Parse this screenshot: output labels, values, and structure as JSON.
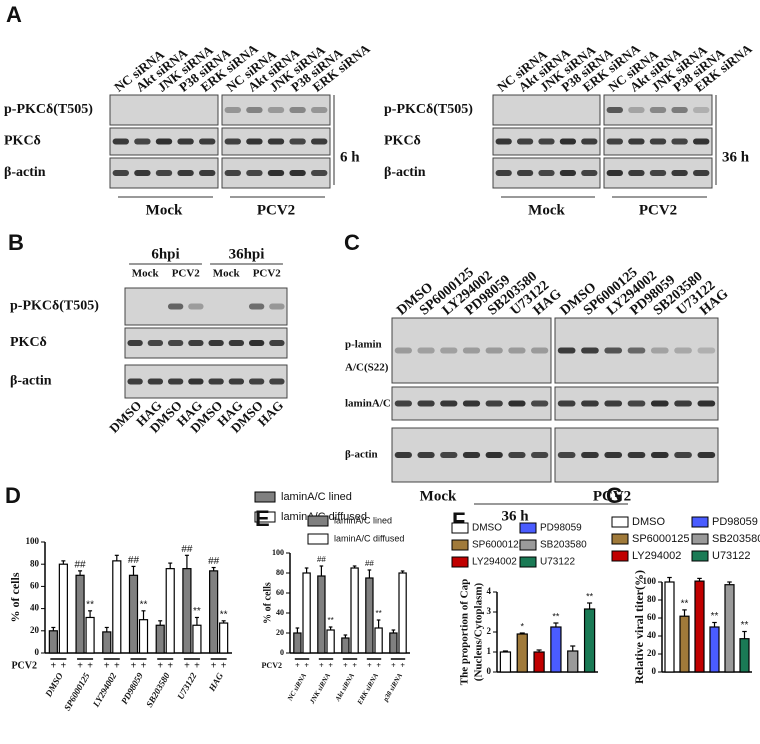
{
  "figure": {
    "A": {
      "label": "A",
      "left": {
        "columns": [
          "NC siRNA",
          "Akt siRNA",
          "JNK siRNA",
          "P38 siRNA",
          "ERK siRNA",
          "NC siRNA",
          "Akt siRNA",
          "JNK siRNA",
          "P38 siRNA",
          "ERK siRNA"
        ],
        "rows": [
          "p-PKCδ(T505)",
          "PKCδ",
          "β-actin"
        ],
        "time": "6 h",
        "groups": [
          "Mock",
          "PCV2"
        ]
      },
      "right": {
        "columns": [
          "NC siRNA",
          "Akt siRNA",
          "JNK siRNA",
          "P38 siRNA",
          "ERK siRNA",
          "NC siRNA",
          "Akt siRNA",
          "JNK siRNA",
          "P38 siRNA",
          "ERK siRNA"
        ],
        "rows": [
          "p-PKCδ(T505)",
          "PKCδ",
          "β-actin"
        ],
        "time": "36 h",
        "groups": [
          "Mock",
          "PCV2"
        ]
      }
    },
    "B": {
      "label": "B",
      "times": [
        "6hpi",
        "36hpi"
      ],
      "groups": [
        "Mock",
        "PCV2",
        "Mock",
        "PCV2"
      ],
      "rows": [
        "p-PKCδ(T505)",
        "PKCδ",
        "β-actin"
      ],
      "lanes": [
        "DMSO",
        "HAG",
        "DMSO",
        "HAG",
        "DMSO",
        "HAG",
        "DMSO",
        "HAG"
      ]
    },
    "C": {
      "label": "C",
      "columns": [
        "DMSO",
        "SP6000125",
        "LY294002",
        "PD98059",
        "SB203580",
        "U73122",
        "HAG",
        "DMSO",
        "SP6000125",
        "LY294002",
        "PD98059",
        "SB203580",
        "U73122",
        "HAG"
      ],
      "row_labels": [
        "p-lamin",
        "A/C(S22)",
        "laminA/C",
        "β-actin"
      ],
      "groups": [
        "Mock",
        "PCV2"
      ],
      "time": "36 h"
    }
  },
  "chart_data": [
    {
      "type": "bar",
      "panel": "D",
      "y_label": "% of cells",
      "categories": [
        "DMSO",
        "SP6000125",
        "LY294002",
        "PD98059",
        "SB203580",
        "U73122",
        "HAG"
      ],
      "series": [
        {
          "name": "laminA/C lined",
          "color": "#808080",
          "values": [
            20,
            70,
            19,
            70,
            25,
            76,
            74
          ],
          "errors": [
            3,
            4,
            4,
            8,
            4,
            12,
            3
          ],
          "annotations": [
            null,
            "##",
            null,
            "##",
            null,
            "##",
            "##"
          ]
        },
        {
          "name": "laminA/C diffused",
          "color": "#ffffff",
          "values": [
            80,
            32,
            83,
            30,
            76,
            25,
            27
          ],
          "errors": [
            3,
            6,
            5,
            8,
            5,
            7,
            2
          ],
          "annotations": [
            null,
            "**",
            null,
            "**",
            null,
            "**",
            "**"
          ]
        }
      ],
      "ylim": [
        0,
        100
      ],
      "yticks": [
        0,
        20,
        40,
        60,
        80,
        100
      ],
      "treatment": "PCV2",
      "treatment_sign": "+"
    },
    {
      "type": "bar",
      "panel": "E",
      "y_label": "% of cells",
      "categories": [
        "NC siRNA",
        "JNK siRNA",
        "Akt siRNA",
        "ERK siRNA",
        "p38 siRNA"
      ],
      "series": [
        {
          "name": "laminA/C lined",
          "color": "#808080",
          "values": [
            20,
            77,
            15,
            75,
            20
          ],
          "errors": [
            5,
            10,
            3,
            8,
            3
          ],
          "annotations": [
            null,
            "##",
            null,
            "##",
            null
          ]
        },
        {
          "name": "laminA/C diffused",
          "color": "#ffffff",
          "values": [
            80,
            23,
            85,
            25,
            80
          ],
          "errors": [
            5,
            3,
            2,
            8,
            2
          ],
          "annotations": [
            null,
            "**",
            null,
            "**",
            null
          ]
        }
      ],
      "ylim": [
        0,
        100
      ],
      "yticks": [
        0,
        20,
        40,
        60,
        80,
        100
      ],
      "treatment": "PCV2",
      "treatment_sign": "+"
    },
    {
      "type": "bar",
      "panel": "F",
      "y_label": [
        "The proportion of Cap",
        "(Nucleus/Cytoplasm)"
      ],
      "categories": [
        "DMSO",
        "SP6000125",
        "LY294002",
        "PD98059",
        "SB203580",
        "U73122"
      ],
      "colors": [
        "#ffffff",
        "#a07a3a",
        "#c00000",
        "#4a5cff",
        "#9a9a9a",
        "#1a7a55"
      ],
      "values": [
        1.0,
        1.9,
        1.0,
        2.25,
        1.05,
        3.15
      ],
      "errors": [
        0.05,
        0.05,
        0.1,
        0.2,
        0.25,
        0.3
      ],
      "annotations": [
        null,
        "*",
        null,
        "**",
        null,
        "**"
      ],
      "ylim": [
        0,
        4
      ],
      "yticks": [
        0,
        1,
        2,
        3,
        4
      ]
    },
    {
      "type": "bar",
      "panel": "G",
      "y_label": "Relative viral titer(%)",
      "categories": [
        "DMSO",
        "SP6000125",
        "LY294002",
        "PD98059",
        "SB203580",
        "U73122"
      ],
      "colors": [
        "#ffffff",
        "#a07a3a",
        "#c00000",
        "#4a5cff",
        "#9a9a9a",
        "#1a7a55"
      ],
      "values": [
        100,
        62,
        101,
        50,
        97,
        37
      ],
      "errors": [
        5,
        7,
        3,
        5,
        3,
        8
      ],
      "annotations": [
        null,
        "**",
        null,
        "**",
        null,
        "**"
      ],
      "ylim": [
        0,
        100
      ],
      "yticks": [
        0,
        20,
        40,
        60,
        80,
        100
      ]
    }
  ]
}
